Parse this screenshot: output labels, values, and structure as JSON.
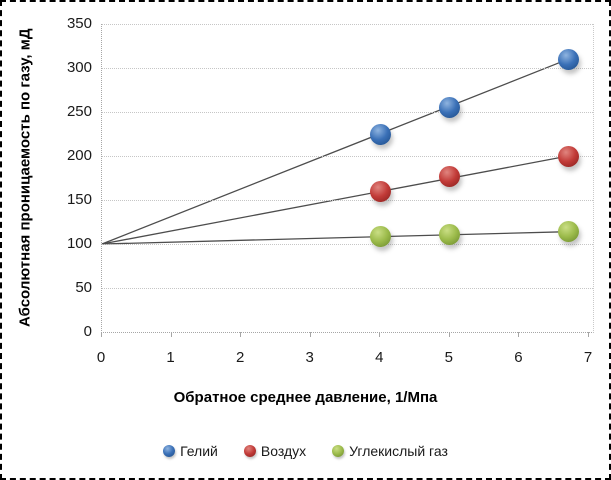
{
  "chart_data": {
    "type": "scatter",
    "title": "",
    "xlabel": "Обратное среднее давление, 1/Мпа",
    "ylabel": "Абсолютная проницаемость по газу, мД",
    "xlim": [
      0,
      7
    ],
    "ylim": [
      0,
      350
    ],
    "x_ticks": [
      0,
      1,
      2,
      3,
      4,
      5,
      6,
      7
    ],
    "y_ticks": [
      0,
      50,
      100,
      150,
      200,
      250,
      300,
      350
    ],
    "grid": true,
    "legend_position": "bottom",
    "trendline_color": "#4d4d4d",
    "series": [
      {
        "name": "Гелий",
        "color": "#3A70B7",
        "color_light": "#8FB4E0",
        "color_dark": "#1E4C86",
        "points": [
          [
            4,
            225
          ],
          [
            5,
            255
          ],
          [
            6.7,
            310
          ]
        ],
        "trendline": {
          "from": [
            0,
            100
          ],
          "to": [
            6.7,
            310
          ]
        }
      },
      {
        "name": "Воздух",
        "color": "#C23B38",
        "color_light": "#E0857F",
        "color_dark": "#881F1D",
        "points": [
          [
            4,
            160
          ],
          [
            5,
            177
          ],
          [
            6.7,
            200
          ]
        ],
        "trendline": {
          "from": [
            0,
            100
          ],
          "to": [
            6.7,
            200
          ]
        }
      },
      {
        "name": "Углекислый газ",
        "color": "#9CBB4B",
        "color_light": "#CADE85",
        "color_dark": "#6B8A2C",
        "points": [
          [
            4,
            109
          ],
          [
            5,
            111
          ],
          [
            6.7,
            114
          ]
        ],
        "trendline": {
          "from": [
            0,
            100
          ],
          "to": [
            6.7,
            114
          ]
        }
      }
    ]
  }
}
